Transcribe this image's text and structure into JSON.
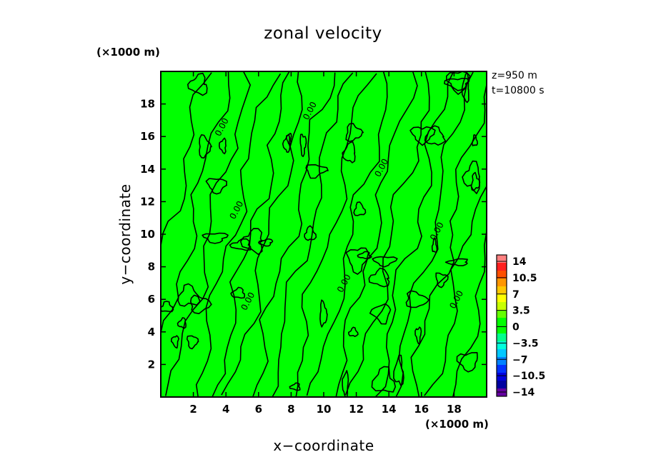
{
  "chart_data": {
    "type": "heatmap",
    "title": "zonal velocity",
    "xlabel": "x−coordinate",
    "ylabel": "y−coordinate",
    "x_unit_label": "(×1000 m)",
    "y_unit_label": "(×1000 m)",
    "info_lines": [
      "z=950 m",
      "t=10800 s"
    ],
    "xlim": [
      0,
      20
    ],
    "ylim": [
      0,
      20
    ],
    "x_ticks": [
      2,
      4,
      6,
      8,
      10,
      12,
      14,
      16,
      18
    ],
    "y_ticks": [
      2,
      4,
      6,
      8,
      10,
      12,
      14,
      16,
      18
    ],
    "x_tick_labels": [
      "2",
      "4",
      "6",
      "8",
      "10",
      "12",
      "14",
      "16",
      "18"
    ],
    "y_tick_labels": [
      "2",
      "4",
      "6",
      "8",
      "10",
      "12",
      "14",
      "16",
      "18"
    ],
    "field_fill_color": "#00ff00",
    "contour_line_label": "0.00",
    "contour_labels_x": [
      3.9,
      4.8,
      5.5,
      9.3,
      11.4,
      13.7,
      17.1,
      18.3
    ],
    "contour_labels_y": [
      16.5,
      11.4,
      5.8,
      17.5,
      6.9,
      14.0,
      10.1,
      5.9
    ],
    "colorbar": {
      "labels": [
        "14",
        "10.5",
        "7",
        "3.5",
        "0",
        "−3.5",
        "−7",
        "−10.5",
        "−14"
      ],
      "colors_top_to_bottom": [
        "#ff8080",
        "#ff2020",
        "#ff5000",
        "#ff9600",
        "#ffc800",
        "#ffff00",
        "#c8ff00",
        "#64ff00",
        "#00ff00",
        "#00ff00",
        "#00ff8c",
        "#00ffdc",
        "#00c8ff",
        "#0082ff",
        "#0032ff",
        "#0000dc",
        "#0000a0",
        "#6400a0"
      ]
    }
  }
}
